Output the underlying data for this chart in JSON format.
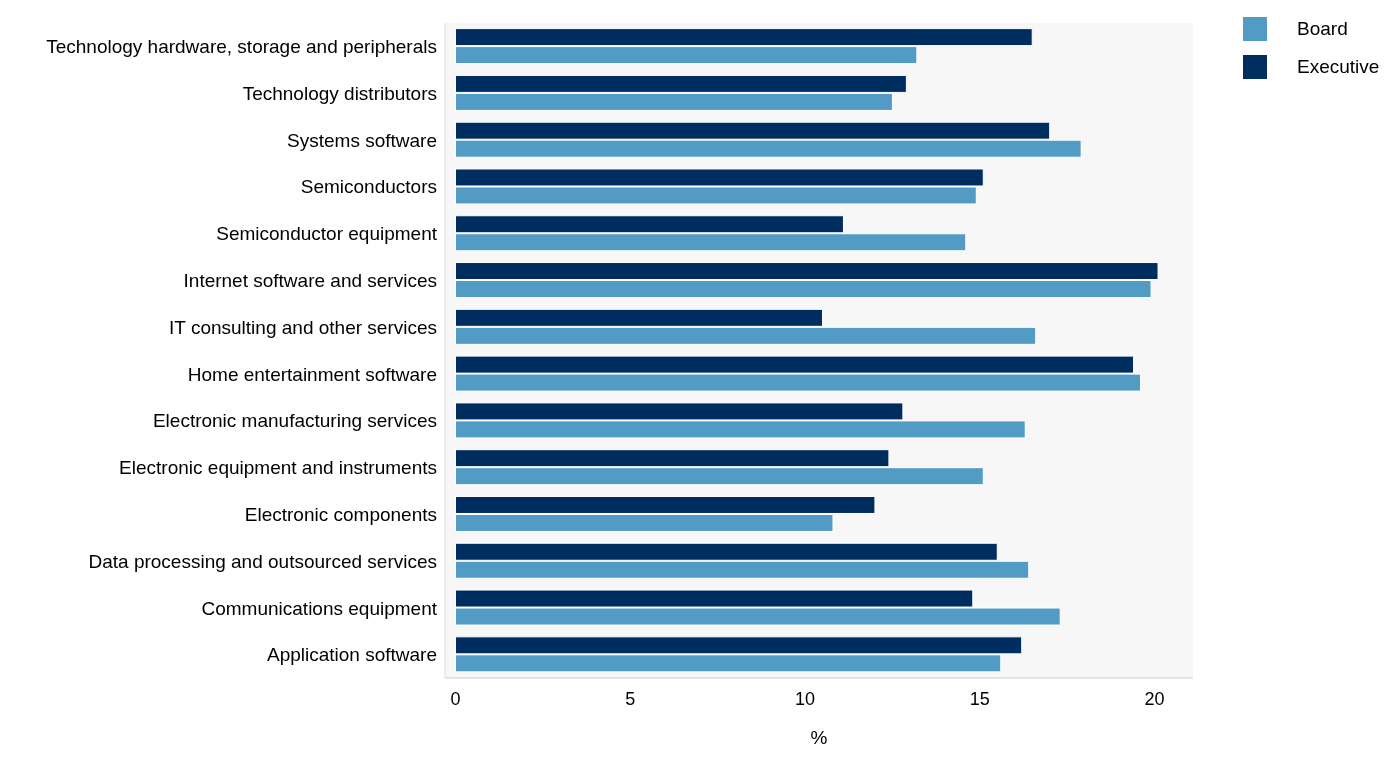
{
  "chart_data": {
    "type": "bar",
    "orientation": "horizontal",
    "xlabel": "%",
    "categories": [
      "Technology hardware, storage and peripherals",
      "Technology distributors",
      "Systems software",
      "Semiconductors",
      "Semiconductor equipment",
      "Internet software and services",
      "IT consulting and other services",
      "Home entertainment software",
      "Electronic manufacturing services",
      "Electronic equipment and instruments",
      "Electronic components",
      "Data processing and outsourced services",
      "Communications equipment",
      "Application software"
    ],
    "series": [
      {
        "name": "Board",
        "color": "#519bc4",
        "values": [
          13.2,
          12.5,
          17.9,
          14.9,
          14.6,
          19.9,
          16.6,
          19.6,
          16.3,
          15.1,
          10.8,
          16.4,
          17.3,
          15.6
        ]
      },
      {
        "name": "Executive",
        "color": "#002d5f",
        "values": [
          16.5,
          12.9,
          17.0,
          15.1,
          11.1,
          20.1,
          10.5,
          19.4,
          12.8,
          12.4,
          12.0,
          15.5,
          14.8,
          16.2
        ]
      }
    ],
    "xlim": [
      -0.3,
      21.1
    ],
    "xticks": [
      0,
      5,
      10,
      15,
      20
    ],
    "grid": false,
    "legend": "top right"
  }
}
